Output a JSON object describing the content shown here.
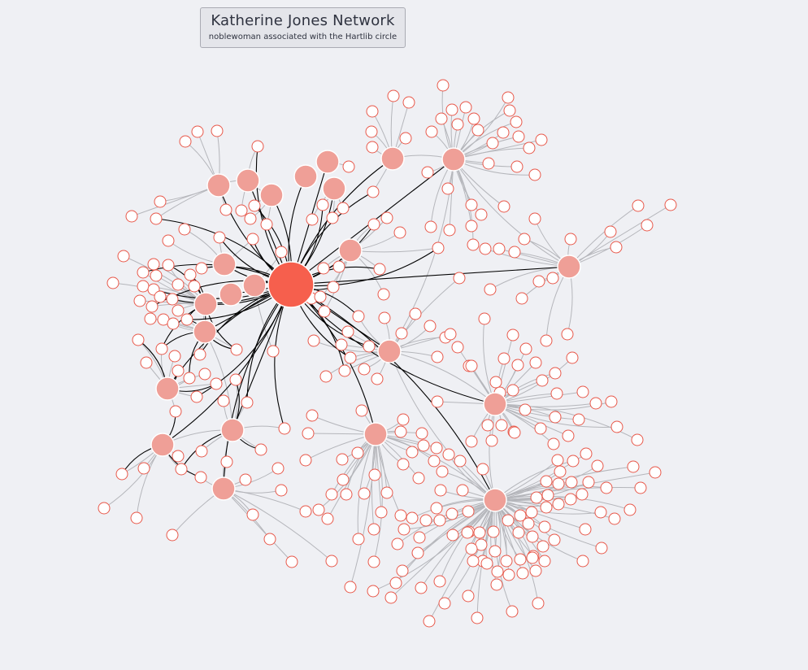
{
  "header": {
    "title": "Katherine Jones Network",
    "subtitle": "noblewoman associated with the Hartlib circle"
  },
  "colors": {
    "background": "#eff0f4",
    "focus_node": "#f65f4d",
    "hub_node": "#ef9f97",
    "leaf_fill": "#ffffff",
    "leaf_stroke": "#e8584a",
    "focus_edge": "#000000",
    "other_edge": "#b5b6bb"
  }
}
